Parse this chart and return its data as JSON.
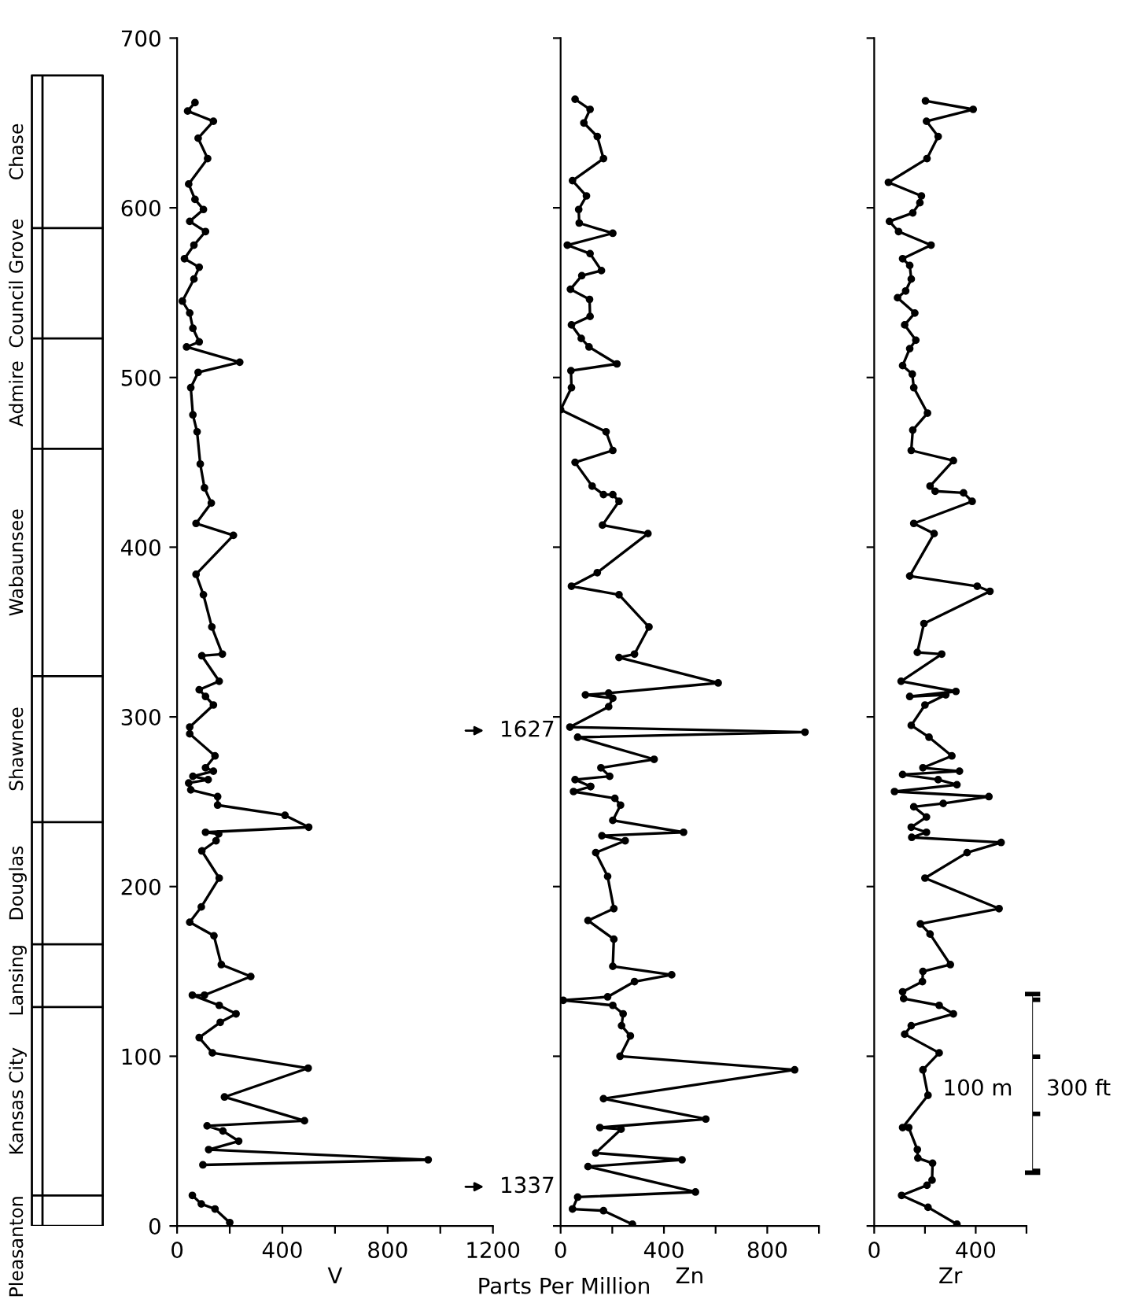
{
  "chart_data": [
    {
      "type": "other",
      "annotations": [
        "Chase",
        "Council Grove",
        "Admire",
        "Wabaunsee",
        "Shawnee",
        "Douglas",
        "Lansing",
        "Kansas City",
        "Pleasanton"
      ]
    },
    {
      "type": "line",
      "xlabel": "V",
      "xlim": [
        0,
        1200
      ],
      "xticks": [
        0,
        {
          "value": 200,
          "label": null
        },
        400,
        {
          "value": 600,
          "label": null
        },
        800,
        {
          "value": 1000,
          "label": null
        },
        1200
      ],
      "ylim": [
        0,
        700
      ],
      "yticks": [
        0,
        100,
        200,
        300,
        400,
        500,
        600,
        700
      ],
      "marker": "circle",
      "line_style": "solid",
      "grid": false,
      "series": [
        {
          "color": "#000000",
          "x": [
            68,
            40,
            138,
            80,
            116,
            44,
            68,
            100,
            48,
            108,
            64,
            28,
            84,
            64,
            20,
            48,
            60,
            84,
            36,
            238,
            80,
            52,
            60,
            76,
            88,
            104,
            130,
            72,
            214,
            72,
            100,
            132,
            172,
            94,
            160,
            84,
            108,
            138,
            48,
            null,
            48,
            144,
            108,
            138,
            60,
            118,
            44,
            52,
            154,
            154,
            410,
            500,
            108,
            158,
            148,
            94,
            160,
            92,
            48,
            140,
            168,
            280,
            104,
            58,
            160,
            224,
            164,
            84,
            134,
            498,
            180,
            484,
            114,
            174,
            234,
            120,
            954,
            98,
            null,
            58,
            92,
            144,
            200
          ],
          "values": [
            662,
            657,
            651,
            641,
            629,
            614,
            605,
            599,
            592,
            586,
            578,
            570,
            565,
            558,
            545,
            538,
            529,
            521,
            518,
            509,
            503,
            494,
            478,
            468,
            449,
            435,
            426,
            414,
            407,
            384,
            372,
            353,
            337,
            336,
            321,
            316,
            312,
            307,
            294,
            null,
            290,
            277,
            270,
            268,
            265,
            263,
            261,
            257,
            253,
            248,
            242,
            235,
            232,
            231,
            227,
            221,
            205,
            188,
            179,
            171,
            154,
            147,
            136,
            136,
            130,
            125,
            120,
            111,
            102,
            93,
            76,
            62,
            59,
            56,
            50,
            45,
            39,
            36,
            null,
            18,
            13,
            10,
            2
          ]
        }
      ],
      "annotations": [
        "1627",
        "1337"
      ]
    },
    {
      "type": "line",
      "xlabel": "Zn",
      "xlim": [
        0,
        1000
      ],
      "xticks": [
        0,
        {
          "value": 200,
          "label": null
        },
        400,
        {
          "value": 600,
          "label": null
        },
        800,
        {
          "value": 1000,
          "label": null
        }
      ],
      "ylim": [
        0,
        700
      ],
      "yticks": [
        {
          "value": 0,
          "label": null
        },
        {
          "value": 100,
          "label": null
        },
        {
          "value": 200,
          "label": null
        },
        {
          "value": 300,
          "label": null
        },
        {
          "value": 400,
          "label": null
        },
        {
          "value": 500,
          "label": null
        },
        {
          "value": 600,
          "label": null
        },
        {
          "value": 700,
          "label": null
        }
      ],
      "tick_labels": "x",
      "marker": "circle",
      "line_style": "solid",
      "grid": false,
      "series": [
        {
          "color": "#000000",
          "x": [
            56,
            114,
            90,
            142,
            166,
            46,
            100,
            70,
            72,
            202,
            26,
            114,
            158,
            82,
            38,
            112,
            114,
            42,
            80,
            110,
            218,
            40,
            42,
            0,
            176,
            202,
            56,
            122,
            166,
            202,
            226,
            162,
            338,
            142,
            42,
            226,
            342,
            286,
            226,
            610,
            186,
            96,
            202,
            186,
            36,
            946,
            66,
            362,
            156,
            190,
            56,
            116,
            116,
            50,
            210,
            232,
            202,
            476,
            160,
            250,
            136,
            182,
            206,
            106,
            206,
            202,
            430,
            286,
            182,
            10,
            202,
            242,
            236,
            270,
            230,
            906,
            166,
            562,
            152,
            234,
            136,
            470,
            106,
            522,
            66,
            46,
            166,
            278
          ],
          "values": [
            664,
            658,
            650,
            642,
            629,
            616,
            607,
            599,
            591,
            585,
            578,
            573,
            563,
            560,
            552,
            546,
            536,
            531,
            523,
            518,
            508,
            504,
            494,
            481,
            468,
            457,
            450,
            436,
            431,
            431,
            427,
            413,
            408,
            385,
            377,
            372,
            353,
            337,
            335,
            320,
            314,
            313,
            311,
            306,
            294,
            291,
            288,
            275,
            270,
            265,
            263,
            259,
            259,
            256,
            252,
            248,
            239,
            232,
            230,
            227,
            220,
            206,
            187,
            180,
            169,
            153,
            148,
            144,
            135,
            133,
            130,
            125,
            118,
            112,
            100,
            92,
            75,
            63,
            58,
            57,
            43,
            39,
            35,
            20,
            17,
            10,
            9,
            1
          ]
        }
      ],
      "annotations": [
        "Parts Per Million"
      ]
    },
    {
      "type": "line",
      "xlabel": "Zr",
      "xlim": [
        0,
        600
      ],
      "xticks": [
        0,
        {
          "value": 200,
          "label": null
        },
        400,
        {
          "value": 600,
          "label": null
        }
      ],
      "ylim": [
        0,
        700
      ],
      "yticks": [
        {
          "value": 0,
          "label": null
        },
        {
          "value": 100,
          "label": null
        },
        {
          "value": 200,
          "label": null
        },
        {
          "value": 300,
          "label": null
        },
        {
          "value": 400,
          "label": null
        },
        {
          "value": 500,
          "label": null
        },
        {
          "value": 600,
          "label": null
        },
        {
          "value": 700,
          "label": null
        }
      ],
      "tick_labels": "x",
      "marker": "circle",
      "line_style": "solid",
      "grid": false,
      "series": [
        {
          "color": "#000000",
          "x": [
            202,
            390,
            206,
            252,
            208,
            56,
            186,
            180,
            152,
            60,
            96,
            224,
            112,
            140,
            146,
            124,
            92,
            160,
            120,
            164,
            140,
            112,
            150,
            156,
            210,
            152,
            146,
            312,
            220,
            240,
            352,
            386,
            156,
            236,
            140,
            406,
            456,
            196,
            170,
            266,
            106,
            322,
            140,
            282,
            200,
            146,
            216,
            306,
            192,
            336,
            112,
            252,
            326,
            80,
            452,
            272,
            156,
            206,
            146,
            206,
            148,
            500,
            366,
            200,
            492,
            182,
            220,
            300,
            192,
            190,
            112,
            116,
            256,
            312,
            146,
            120,
            256,
            192,
            212,
            112,
            136,
            170,
            172,
            230,
            228,
            208,
            108,
            212,
            326
          ],
          "values": [
            663,
            658,
            651,
            642,
            629,
            615,
            607,
            603,
            597,
            592,
            586,
            578,
            570,
            566,
            558,
            551,
            547,
            538,
            531,
            522,
            517,
            507,
            502,
            494,
            479,
            469,
            457,
            451,
            436,
            433,
            432,
            427,
            414,
            408,
            383,
            377,
            374,
            355,
            338,
            337,
            321,
            315,
            312,
            313,
            307,
            295,
            288,
            277,
            270,
            268,
            266,
            263,
            260,
            256,
            253,
            249,
            247,
            241,
            235,
            232,
            229,
            226,
            220,
            205,
            187,
            178,
            172,
            154,
            150,
            144,
            138,
            134,
            130,
            125,
            118,
            113,
            102,
            92,
            77,
            58,
            58,
            45,
            40,
            37,
            27,
            24,
            18,
            11,
            1
          ]
        }
      ],
      "annotations": [
        "100 m",
        "300 ft"
      ]
    }
  ]
}
